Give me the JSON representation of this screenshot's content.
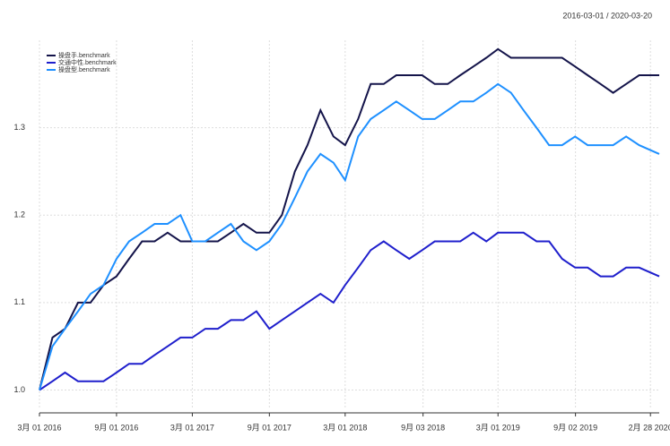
{
  "chart_data": {
    "type": "line",
    "subtitle": "2016-03-01 / 2020-03-20",
    "x": [
      "2016-03-01",
      "2016-04-01",
      "2016-05-01",
      "2016-06-01",
      "2016-07-01",
      "2016-08-01",
      "2016-09-01",
      "2016-10-01",
      "2016-11-01",
      "2016-12-01",
      "2017-01-01",
      "2017-02-01",
      "2017-03-01",
      "2017-04-01",
      "2017-05-01",
      "2017-06-01",
      "2017-07-01",
      "2017-08-01",
      "2017-09-01",
      "2017-10-01",
      "2017-11-01",
      "2017-12-01",
      "2018-01-01",
      "2018-02-01",
      "2018-03-01",
      "2018-04-01",
      "2018-05-01",
      "2018-06-01",
      "2018-07-01",
      "2018-08-01",
      "2018-09-01",
      "2018-10-01",
      "2018-11-01",
      "2018-12-01",
      "2019-01-01",
      "2019-02-01",
      "2019-03-01",
      "2019-04-01",
      "2019-05-01",
      "2019-06-01",
      "2019-07-01",
      "2019-08-01",
      "2019-09-01",
      "2019-10-01",
      "2019-11-01",
      "2019-12-01",
      "2020-01-01",
      "2020-02-01",
      "2020-03-20"
    ],
    "series": [
      {
        "name": "操盘手.benchmark",
        "color": "#14144a",
        "values": [
          1.0,
          1.06,
          1.07,
          1.1,
          1.1,
          1.12,
          1.13,
          1.15,
          1.17,
          1.17,
          1.18,
          1.17,
          1.17,
          1.17,
          1.17,
          1.18,
          1.19,
          1.18,
          1.18,
          1.2,
          1.25,
          1.28,
          1.32,
          1.29,
          1.28,
          1.31,
          1.35,
          1.35,
          1.36,
          1.36,
          1.36,
          1.35,
          1.35,
          1.36,
          1.37,
          1.38,
          1.39,
          1.38,
          1.38,
          1.38,
          1.38,
          1.38,
          1.37,
          1.36,
          1.35,
          1.34,
          1.35,
          1.36,
          1.36
        ]
      },
      {
        "name": "交通中性.benchmark",
        "color": "#1f1fcc",
        "values": [
          1.0,
          1.01,
          1.02,
          1.01,
          1.01,
          1.01,
          1.02,
          1.03,
          1.03,
          1.04,
          1.05,
          1.06,
          1.06,
          1.07,
          1.07,
          1.08,
          1.08,
          1.09,
          1.07,
          1.08,
          1.09,
          1.1,
          1.11,
          1.1,
          1.12,
          1.14,
          1.16,
          1.17,
          1.16,
          1.15,
          1.16,
          1.17,
          1.17,
          1.17,
          1.18,
          1.17,
          1.18,
          1.18,
          1.18,
          1.17,
          1.17,
          1.15,
          1.14,
          1.14,
          1.13,
          1.13,
          1.14,
          1.14,
          1.13
        ]
      },
      {
        "name": "操盘型.benchmark",
        "color": "#1e90ff",
        "values": [
          1.0,
          1.05,
          1.07,
          1.09,
          1.11,
          1.12,
          1.15,
          1.17,
          1.18,
          1.19,
          1.19,
          1.2,
          1.17,
          1.17,
          1.18,
          1.19,
          1.17,
          1.16,
          1.17,
          1.19,
          1.22,
          1.25,
          1.27,
          1.26,
          1.24,
          1.29,
          1.31,
          1.32,
          1.33,
          1.32,
          1.31,
          1.31,
          1.32,
          1.33,
          1.33,
          1.34,
          1.35,
          1.34,
          1.32,
          1.3,
          1.28,
          1.28,
          1.29,
          1.28,
          1.28,
          1.28,
          1.29,
          1.28,
          1.27
        ]
      }
    ],
    "xlim": [
      "2016-03-01",
      "2020-03-20"
    ],
    "xticks": [
      {
        "value": "2016-03-01",
        "label": "3月 01 2016"
      },
      {
        "value": "2016-09-01",
        "label": "9月 01 2016"
      },
      {
        "value": "2017-03-01",
        "label": "3月 01 2017"
      },
      {
        "value": "2017-09-01",
        "label": "9月 01 2017"
      },
      {
        "value": "2018-03-01",
        "label": "3月 01 2018"
      },
      {
        "value": "2018-09-03",
        "label": "9月 03 2018"
      },
      {
        "value": "2019-03-01",
        "label": "3月 01 2019"
      },
      {
        "value": "2019-09-02",
        "label": "9月 02 2019"
      },
      {
        "value": "2020-02-28",
        "label": "2月 28 2020"
      }
    ],
    "ylim": [
      0.98,
      1.4
    ],
    "yticks": [
      {
        "value": 1,
        "label": "1.0"
      },
      1.1,
      1.2,
      1.3
    ],
    "grid": true,
    "legend": "top-left"
  }
}
